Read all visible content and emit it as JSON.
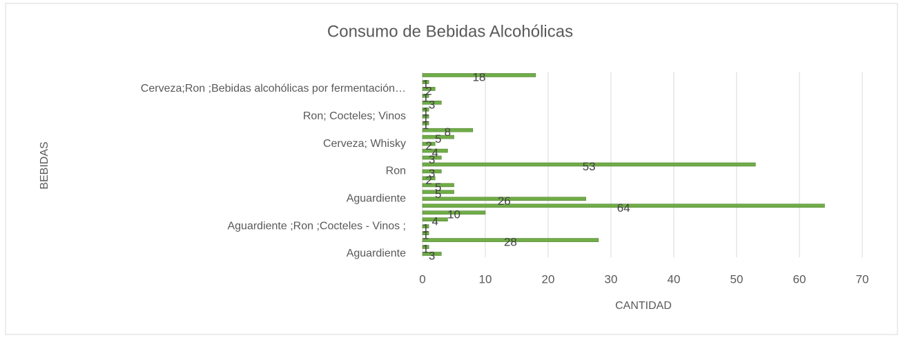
{
  "chart_data": {
    "type": "barh",
    "title": "Consumo de Bebidas Alcohólicas",
    "x_label": "CANTIDAD",
    "y_label": "BEBIDAS",
    "categories": [
      "Aguardiente",
      null,
      null,
      null,
      "Aguardiente ;Ron ;Cocteles - Vinos ;",
      null,
      null,
      null,
      "Aguardiente",
      null,
      null,
      null,
      "Ron",
      null,
      null,
      null,
      "Cerveza; Whisky",
      null,
      null,
      null,
      "Ron; Cocteles; Vinos",
      null,
      null,
      null,
      "Cerveza;Ron ;Bebidas alcohólicas por fermentación…",
      null,
      null
    ],
    "values": [
      3,
      1,
      28,
      1,
      1,
      4,
      10,
      64,
      26,
      5,
      5,
      2,
      3,
      53,
      3,
      4,
      2,
      5,
      8,
      1,
      1,
      1,
      3,
      1,
      2,
      1,
      18
    ],
    "color": "#70ad47",
    "xlim": [
      0,
      70
    ],
    "xticks": [
      0,
      10,
      20,
      30,
      40,
      50,
      60,
      70
    ],
    "grid": true
  }
}
